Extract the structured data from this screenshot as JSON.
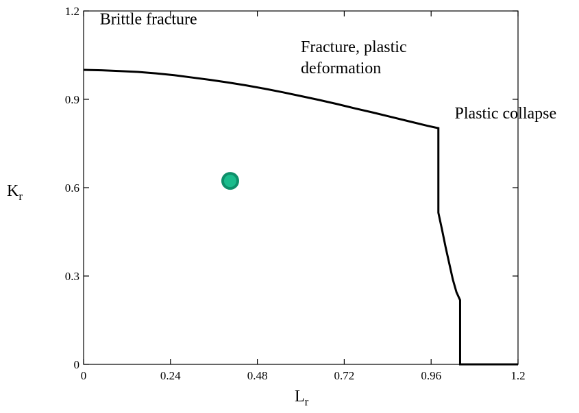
{
  "chart_data": {
    "type": "line",
    "xlabel": "L",
    "xlabel_subscript": "r",
    "ylabel": "K",
    "ylabel_subscript": "r",
    "xlim": [
      0,
      1.2
    ],
    "ylim": [
      0,
      1.2
    ],
    "xticks": [
      0,
      0.24,
      0.48,
      0.72,
      0.96,
      1.2
    ],
    "xtick_labels": [
      "0",
      "0.24",
      "0.48",
      "0.72",
      "0.96",
      "1.2"
    ],
    "yticks": [
      0,
      0.3,
      0.6,
      0.9,
      1.2
    ],
    "ytick_labels": [
      "0",
      "0.3",
      "0.6",
      "0.9",
      "1.2"
    ],
    "grid": false,
    "series": [
      {
        "color": "#000000",
        "x": [
          0,
          0.05,
          0.1,
          0.15,
          0.2,
          0.25,
          0.3,
          0.35,
          0.4,
          0.45,
          0.5,
          0.55,
          0.6,
          0.65,
          0.7,
          0.75,
          0.8,
          0.85,
          0.9,
          0.95,
          0.98,
          0.98,
          0.98,
          0.99,
          1.0,
          1.01,
          1.02,
          1.03,
          1.04,
          1.04,
          1.04,
          1.2
        ],
        "y": [
          1.0,
          0.9985,
          0.996,
          0.993,
          0.988,
          0.982,
          0.974,
          0.966,
          0.957,
          0.947,
          0.936,
          0.924,
          0.911,
          0.898,
          0.884,
          0.869,
          0.855,
          0.84,
          0.825,
          0.81,
          0.802,
          0.802,
          0.515,
          0.458,
          0.398,
          0.343,
          0.288,
          0.245,
          0.218,
          0.218,
          0.0,
          0.0
        ]
      }
    ],
    "points": [
      {
        "x": 0.405,
        "y": 0.623,
        "color": "#1ABC8C",
        "edge": "#0E8F6A"
      }
    ],
    "annotations": [
      {
        "lines": [
          "Brittle fracture"
        ],
        "x": 0.045,
        "y": 1.155
      },
      {
        "lines": [
          "Fracture, plastic",
          "deformation"
        ],
        "x": 0.6,
        "y": 1.06
      },
      {
        "lines": [
          "Plastic collapse"
        ],
        "x": 1.025,
        "y": 0.835
      }
    ]
  }
}
